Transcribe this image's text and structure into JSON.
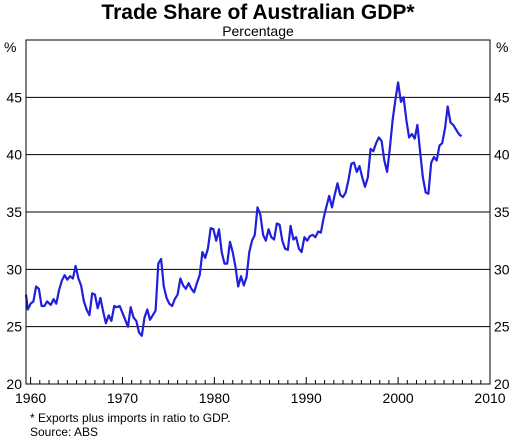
{
  "chart_data": {
    "type": "line",
    "title": "Trade Share of Australian GDP*",
    "subtitle": "Percentage",
    "ylabel_left": "%",
    "ylabel_right": "%",
    "xlim": [
      1959.5,
      2010
    ],
    "ylim": [
      20,
      50
    ],
    "x_ticks": [
      "1960",
      "1970",
      "1980",
      "1990",
      "2000",
      "2010"
    ],
    "y_ticks": [
      "20",
      "25",
      "30",
      "35",
      "40",
      "45"
    ],
    "grid": "horizontal",
    "line_color": "#1f1fdc",
    "series": [
      {
        "values": [
          [
            1959.5,
            27.8
          ],
          [
            1959.7,
            26.5
          ],
          [
            1960.0,
            27.0
          ],
          [
            1960.3,
            27.2
          ],
          [
            1960.6,
            28.5
          ],
          [
            1960.9,
            28.3
          ],
          [
            1961.2,
            26.8
          ],
          [
            1961.5,
            26.8
          ],
          [
            1961.8,
            27.2
          ],
          [
            1962.2,
            26.9
          ],
          [
            1962.5,
            27.4
          ],
          [
            1962.8,
            27.0
          ],
          [
            1963.1,
            28.2
          ],
          [
            1963.4,
            29.0
          ],
          [
            1963.7,
            29.5
          ],
          [
            1964.0,
            29.1
          ],
          [
            1964.3,
            29.4
          ],
          [
            1964.6,
            29.2
          ],
          [
            1964.9,
            30.3
          ],
          [
            1965.2,
            29.2
          ],
          [
            1965.5,
            28.6
          ],
          [
            1965.8,
            27.2
          ],
          [
            1966.1,
            26.5
          ],
          [
            1966.4,
            26.0
          ],
          [
            1966.7,
            27.9
          ],
          [
            1967.0,
            27.8
          ],
          [
            1967.3,
            26.6
          ],
          [
            1967.6,
            27.5
          ],
          [
            1967.9,
            26.3
          ],
          [
            1968.2,
            25.3
          ],
          [
            1968.5,
            26.0
          ],
          [
            1968.8,
            25.5
          ],
          [
            1969.1,
            26.8
          ],
          [
            1969.4,
            26.7
          ],
          [
            1969.7,
            26.8
          ],
          [
            1970.0,
            26.2
          ],
          [
            1970.3,
            25.6
          ],
          [
            1970.6,
            25.0
          ],
          [
            1970.9,
            26.7
          ],
          [
            1971.2,
            25.8
          ],
          [
            1971.5,
            25.5
          ],
          [
            1971.8,
            24.5
          ],
          [
            1972.1,
            24.2
          ],
          [
            1972.4,
            25.8
          ],
          [
            1972.7,
            26.5
          ],
          [
            1973.0,
            25.6
          ],
          [
            1973.3,
            26.0
          ],
          [
            1973.6,
            26.4
          ],
          [
            1973.9,
            30.5
          ],
          [
            1974.2,
            30.9
          ],
          [
            1974.5,
            28.5
          ],
          [
            1974.8,
            27.5
          ],
          [
            1975.1,
            27.0
          ],
          [
            1975.4,
            26.8
          ],
          [
            1975.7,
            27.4
          ],
          [
            1976.0,
            27.8
          ],
          [
            1976.3,
            29.2
          ],
          [
            1976.6,
            28.6
          ],
          [
            1976.9,
            28.3
          ],
          [
            1977.2,
            28.8
          ],
          [
            1977.5,
            28.3
          ],
          [
            1977.8,
            28.0
          ],
          [
            1978.1,
            28.8
          ],
          [
            1978.4,
            29.5
          ],
          [
            1978.7,
            31.5
          ],
          [
            1979.0,
            31.0
          ],
          [
            1979.3,
            31.8
          ],
          [
            1979.6,
            33.6
          ],
          [
            1979.9,
            33.5
          ],
          [
            1980.2,
            32.5
          ],
          [
            1980.5,
            33.5
          ],
          [
            1980.8,
            31.5
          ],
          [
            1981.1,
            30.5
          ],
          [
            1981.4,
            30.5
          ],
          [
            1981.7,
            32.4
          ],
          [
            1982.0,
            31.5
          ],
          [
            1982.3,
            30.2
          ],
          [
            1982.6,
            28.5
          ],
          [
            1982.9,
            29.4
          ],
          [
            1983.2,
            28.6
          ],
          [
            1983.5,
            29.3
          ],
          [
            1983.8,
            31.5
          ],
          [
            1984.1,
            32.5
          ],
          [
            1984.4,
            33.0
          ],
          [
            1984.7,
            35.4
          ],
          [
            1985.0,
            34.8
          ],
          [
            1985.3,
            33.0
          ],
          [
            1985.6,
            32.5
          ],
          [
            1985.9,
            33.5
          ],
          [
            1986.2,
            32.8
          ],
          [
            1986.5,
            32.6
          ],
          [
            1986.8,
            34.0
          ],
          [
            1987.1,
            33.9
          ],
          [
            1987.4,
            32.5
          ],
          [
            1987.7,
            31.8
          ],
          [
            1988.0,
            31.7
          ],
          [
            1988.3,
            33.8
          ],
          [
            1988.6,
            32.6
          ],
          [
            1988.9,
            32.8
          ],
          [
            1989.2,
            31.8
          ],
          [
            1989.5,
            31.5
          ],
          [
            1989.8,
            32.8
          ],
          [
            1990.1,
            32.5
          ],
          [
            1990.4,
            32.9
          ],
          [
            1990.7,
            33.0
          ],
          [
            1991.0,
            32.8
          ],
          [
            1991.3,
            33.3
          ],
          [
            1991.6,
            33.2
          ],
          [
            1991.9,
            34.5
          ],
          [
            1992.2,
            35.5
          ],
          [
            1992.5,
            36.4
          ],
          [
            1992.8,
            35.4
          ],
          [
            1993.1,
            36.5
          ],
          [
            1993.4,
            37.5
          ],
          [
            1993.7,
            36.5
          ],
          [
            1994.0,
            36.3
          ],
          [
            1994.3,
            36.7
          ],
          [
            1994.6,
            37.8
          ],
          [
            1994.9,
            39.2
          ],
          [
            1995.2,
            39.3
          ],
          [
            1995.5,
            38.5
          ],
          [
            1995.8,
            39.0
          ],
          [
            1996.1,
            38.0
          ],
          [
            1996.4,
            37.2
          ],
          [
            1996.7,
            38.0
          ],
          [
            1997.0,
            40.5
          ],
          [
            1997.3,
            40.3
          ],
          [
            1997.6,
            41.0
          ],
          [
            1997.9,
            41.5
          ],
          [
            1998.2,
            41.2
          ],
          [
            1998.5,
            39.5
          ],
          [
            1998.8,
            38.5
          ],
          [
            1999.1,
            40.5
          ],
          [
            1999.4,
            43.0
          ],
          [
            1999.7,
            44.8
          ],
          [
            2000.0,
            46.3
          ],
          [
            2000.3,
            44.6
          ],
          [
            2000.6,
            45.0
          ],
          [
            2000.9,
            43.0
          ],
          [
            2001.2,
            41.5
          ],
          [
            2001.5,
            41.8
          ],
          [
            2001.8,
            41.4
          ],
          [
            2002.1,
            42.6
          ],
          [
            2002.4,
            40.2
          ],
          [
            2002.7,
            38.0
          ],
          [
            2003.0,
            36.7
          ],
          [
            2003.3,
            36.6
          ],
          [
            2003.6,
            39.3
          ],
          [
            2003.9,
            39.8
          ],
          [
            2004.2,
            39.5
          ],
          [
            2004.5,
            40.8
          ],
          [
            2004.8,
            41.0
          ],
          [
            2005.1,
            42.3
          ],
          [
            2005.4,
            44.2
          ],
          [
            2005.7,
            42.8
          ],
          [
            2006.0,
            42.6
          ],
          [
            2006.3,
            42.2
          ],
          [
            2006.6,
            41.8
          ],
          [
            2006.9,
            41.6
          ]
        ]
      }
    ],
    "footnote": "*   Exports plus imports in ratio to GDP.",
    "source": "Source: ABS"
  }
}
